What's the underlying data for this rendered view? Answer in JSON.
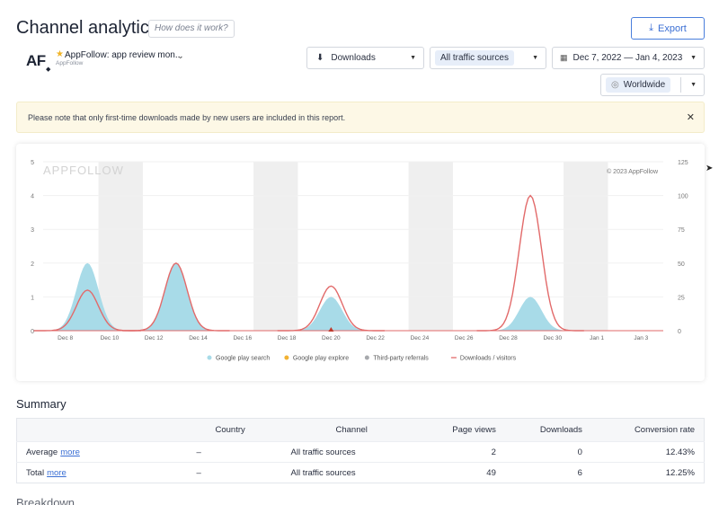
{
  "header": {
    "title": "Channel analytics",
    "how_label": "How does it work?",
    "export_label": "Export"
  },
  "app": {
    "logo_text": "AF",
    "name": "AppFollow: app review mon...",
    "developer": "AppFollow"
  },
  "filters": {
    "metric": "Downloads",
    "traffic": "All traffic sources",
    "date_range": "Dec 7, 2022 — Jan 4, 2023",
    "region": "Worldwide"
  },
  "notice": {
    "text": "Please note that only first-time downloads made by new users are included in this report."
  },
  "chart_data": {
    "type": "area",
    "watermark": "APPFOLLOW",
    "copyright": "© 2023 AppFollow",
    "x": [
      "Dec 8",
      "Dec 10",
      "Dec 12",
      "Dec 14",
      "Dec 16",
      "Dec 18",
      "Dec 20",
      "Dec 22",
      "Dec 24",
      "Dec 26",
      "Dec 28",
      "Dec 30",
      "Jan 1",
      "Jan 3"
    ],
    "y_left": {
      "ticks": [
        0,
        1,
        2,
        3,
        4,
        5
      ],
      "ylim": [
        0,
        5
      ]
    },
    "y_right": {
      "ticks": [
        0,
        25,
        50,
        75,
        100,
        125
      ],
      "ylim": [
        0,
        125
      ]
    },
    "weekend_shading": [
      [
        "Dec 10",
        "Dec 11"
      ],
      [
        "Dec 17",
        "Dec 18"
      ],
      [
        "Dec 24",
        "Dec 25"
      ],
      [
        "Dec 31",
        "Jan 1"
      ]
    ],
    "series": [
      {
        "name": "Google play search",
        "type": "area",
        "color": "#a8dbe8",
        "axis": "left",
        "points": [
          [
            "Dec 9",
            2
          ],
          [
            "Dec 13",
            2
          ],
          [
            "Dec 20",
            1
          ],
          [
            "Dec 29",
            1
          ]
        ]
      },
      {
        "name": "Google play explore",
        "type": "area",
        "color": "#f2b233",
        "axis": "left",
        "points": []
      },
      {
        "name": "Third-party referrals",
        "type": "area",
        "color": "#a7a9ad",
        "axis": "left",
        "points": []
      },
      {
        "name": "Downloads / visitors",
        "type": "line",
        "color": "#e26a6a",
        "axis": "right",
        "points": [
          [
            "Dec 9",
            30
          ],
          [
            "Dec 13",
            50
          ],
          [
            "Dec 20",
            33
          ],
          [
            "Dec 29",
            100
          ]
        ]
      }
    ],
    "legend_position": "bottom"
  },
  "summary": {
    "title": "Summary",
    "columns": [
      "",
      "Country",
      "Channel",
      "Page views",
      "Downloads",
      "Conversion rate"
    ],
    "more_label": "more",
    "rows": [
      {
        "label": "Average",
        "country": "–",
        "channel": "All traffic sources",
        "page_views": "2",
        "downloads": "0",
        "conversion": "12.43%"
      },
      {
        "label": "Total",
        "country": "–",
        "channel": "All traffic sources",
        "page_views": "49",
        "downloads": "6",
        "conversion": "12.25%"
      }
    ]
  },
  "footer": {
    "next_section": "Breakdown"
  },
  "colors": {
    "accent": "#3b6fd4",
    "notice_bg": "#fdf8e6",
    "area": "#a8dbe8",
    "line": "#e26a6a"
  }
}
